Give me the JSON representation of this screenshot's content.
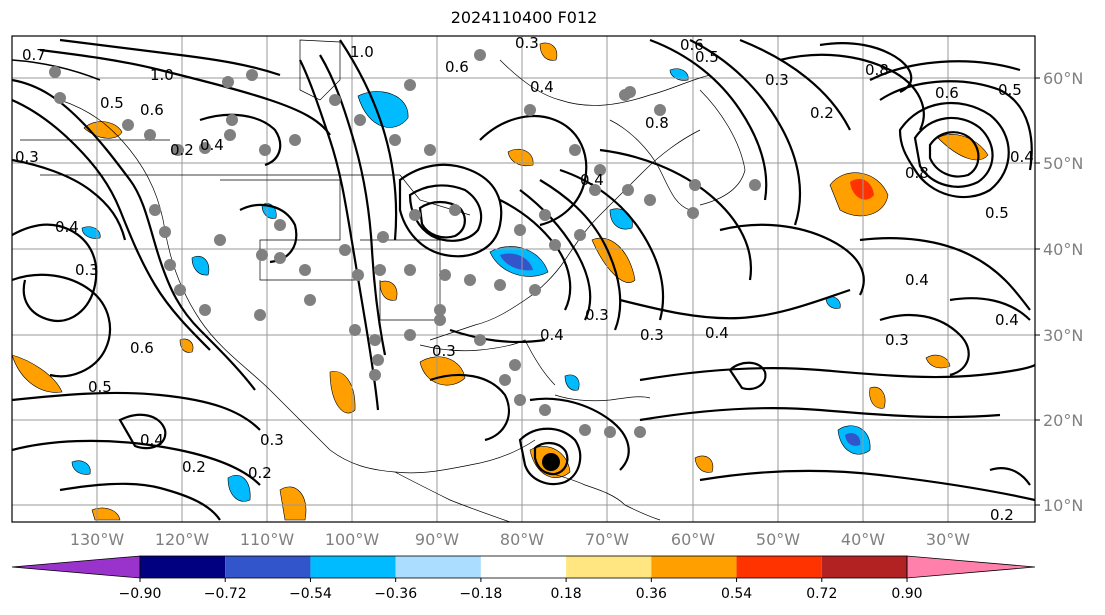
{
  "title": "2024110400 F012",
  "lat_labels": [
    "60°N",
    "50°N",
    "40°N",
    "30°N",
    "20°N",
    "10°N"
  ],
  "lon_labels": [
    "130°W",
    "120°W",
    "110°W",
    "100°W",
    "90°W",
    "80°W",
    "70°W",
    "60°W",
    "50°W",
    "40°W",
    "30°W"
  ],
  "colorbar": {
    "ticks": [
      "−0.90",
      "−0.72",
      "−0.54",
      "−0.36",
      "−0.18",
      "0.18",
      "0.36",
      "0.54",
      "0.72",
      "0.90"
    ],
    "colors": [
      "#9933cc",
      "#000080",
      "#3355cc",
      "#00bbff",
      "#aaddff",
      "#ffffff",
      "#ffe680",
      "#ffa000",
      "#ff3300",
      "#b22222",
      "#ff80aa"
    ]
  },
  "contour_labels": [
    "0.7",
    "1.0",
    "0.5",
    "0.6",
    "0.2",
    "0.4",
    "0.3",
    "0.4",
    "0.3",
    "0.6",
    "1.0",
    "0.8",
    "0.6",
    "0.4",
    "0.3",
    "0.2",
    "0.3",
    "0.8",
    "0.6",
    "0.5",
    "0.4",
    "0.3",
    "0.5",
    "0.2",
    "0.4",
    "0.2",
    "0.3",
    "0.3",
    "0.4",
    "0.3",
    "0.4",
    "0.4",
    "0.3",
    "0.4",
    "0.5",
    "0.2",
    "0.6",
    "0.8",
    "0.4",
    "0.5"
  ],
  "map_colors": {
    "positive": "#ffa000",
    "negative": "#00bbff",
    "strong_pos": "#ff3300",
    "strong_neg": "#3355cc",
    "station": "#808080",
    "grid": "#999999"
  }
}
